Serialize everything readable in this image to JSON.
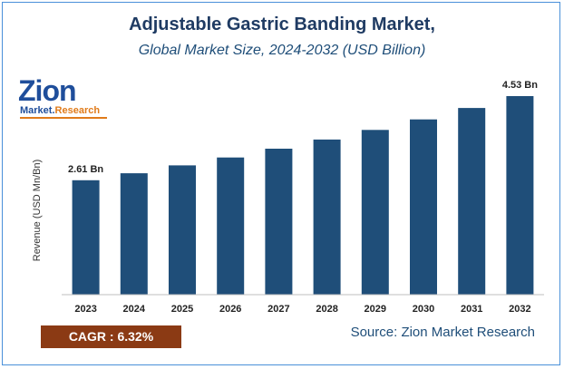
{
  "header": {
    "title": "Adjustable Gastric Banding Market,",
    "subtitle": "Global Market Size, 2024-2032 (USD Billion)"
  },
  "logo": {
    "main": "Zion",
    "sub_market": "Market.",
    "sub_research": "Research"
  },
  "footer": {
    "cagr": "CAGR :  6.32%",
    "source": "Source: Zion Market Research"
  },
  "colors": {
    "bar": "#1f4e79",
    "axis": "#bfbfbf"
  },
  "chart_data": {
    "type": "bar",
    "title": "Adjustable Gastric Banding Market,",
    "subtitle": "Global Market Size, 2024-2032 (USD Billion)",
    "xlabel": "",
    "ylabel": "Revenue (USD Mn/Bn)",
    "categories": [
      "2023",
      "2024",
      "2025",
      "2026",
      "2027",
      "2028",
      "2029",
      "2030",
      "2031",
      "2032"
    ],
    "values": [
      2.61,
      2.77,
      2.95,
      3.13,
      3.33,
      3.54,
      3.76,
      4.0,
      4.26,
      4.53
    ],
    "data_labels": [
      {
        "index": 0,
        "text": "2.61 Bn"
      },
      {
        "index": 9,
        "text": "4.53 Bn"
      }
    ],
    "ylim": [
      0,
      4.8
    ],
    "grid": false,
    "legend": "none"
  }
}
